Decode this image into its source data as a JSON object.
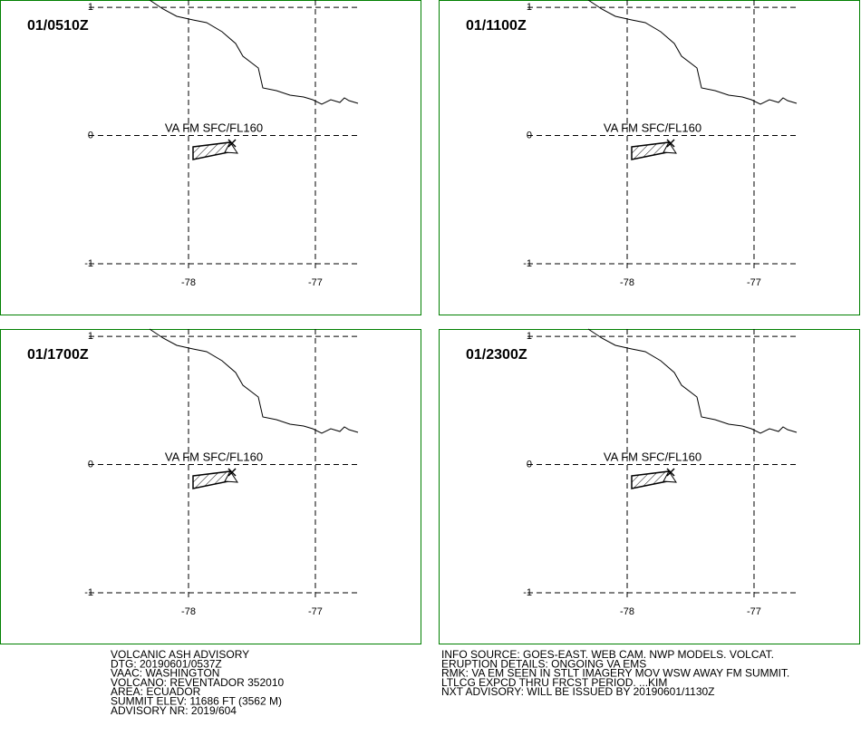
{
  "panels": [
    {
      "time": "01/0510Z",
      "layer": "VA FM SFC/FL160",
      "xlim": [
        -79.486,
        -76.164
      ],
      "ylim": [
        -1.403,
        1.057
      ],
      "xticks": [
        -78,
        -77
      ],
      "yticks": [
        1,
        0,
        -1
      ]
    },
    {
      "time": "01/1100Z",
      "layer": "VA FM SFC/FL160",
      "xlim": [
        -79.486,
        -76.164
      ],
      "ylim": [
        -1.403,
        1.057
      ],
      "xticks": [
        -78,
        -77
      ],
      "yticks": [
        1,
        0,
        -1
      ]
    },
    {
      "time": "01/1700Z",
      "layer": "VA FM SFC/FL160",
      "xlim": [
        -79.486,
        -76.164
      ],
      "ylim": [
        -1.403,
        1.057
      ],
      "xticks": [
        -78,
        -77
      ],
      "yticks": [
        1,
        0,
        -1
      ]
    },
    {
      "time": "01/2300Z",
      "layer": "VA FM SFC/FL160",
      "xlim": [
        -79.486,
        -76.164
      ],
      "ylim": [
        -1.403,
        1.057
      ],
      "xticks": [
        -78,
        -77
      ],
      "yticks": [
        1,
        0,
        -1
      ]
    }
  ],
  "advisory": {
    "left": [
      "VOLCANIC ASH ADVISORY",
      "DTG: 20190601/0537Z",
      "VAAC: WASHINGTON",
      "VOLCANO: REVENTADOR 352010",
      "AREA: ECUADOR",
      "SUMMIT ELEV: 11686 FT (3562 M)",
      "ADVISORY NR: 2019/604"
    ],
    "right": [
      "INFO SOURCE: GOES-EAST. WEB CAM. NWP MODELS. VOLCAT.",
      "ERUPTION DETAILS: ONGOING VA EMS",
      "RMK: VA EM SEEN IN STLT IMAGERY MOV WSW AWAY FM SUMMIT.",
      "LTLCG EXPCD THRU FRCST PERIOD. ...KIM",
      "NXT ADVISORY: WILL BE ISSUED BY 20190601/1130Z"
    ]
  }
}
